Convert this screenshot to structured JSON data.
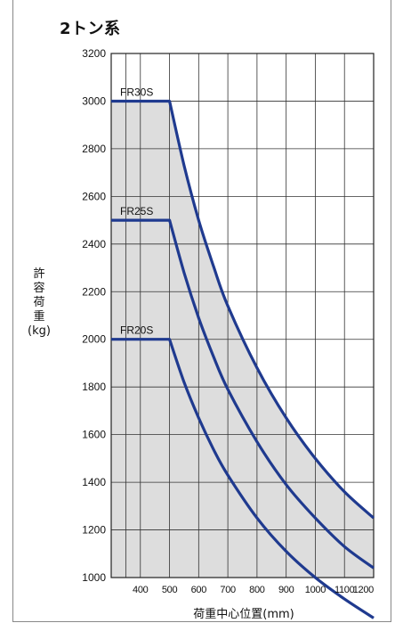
{
  "chart_data": {
    "type": "line",
    "title": "2トン系",
    "ylabel_chars": [
      "許",
      "容",
      "荷",
      "重"
    ],
    "ylabel_unit": "(kg)",
    "xlabel": "荷重中心位置(mm)",
    "xlim": [
      300,
      1200
    ],
    "ylim": [
      1000,
      3200
    ],
    "x_ticks": [
      400,
      500,
      600,
      700,
      800,
      900,
      1000,
      1100,
      1200
    ],
    "y_ticks": [
      1000,
      1200,
      1400,
      1600,
      1800,
      2000,
      2200,
      2400,
      2600,
      2800,
      3000,
      3200
    ],
    "grid": true,
    "shaded_area_color": "#dddddd",
    "line_color": "#1f3a8f",
    "series": [
      {
        "name": "FR30S",
        "x": [
          300,
          500,
          550,
          600,
          650,
          700,
          800,
          900,
          1000,
          1100,
          1200
        ],
        "y": [
          3000,
          3000,
          2730,
          2500,
          2310,
          2140,
          1880,
          1670,
          1500,
          1360,
          1250
        ]
      },
      {
        "name": "FR25S",
        "x": [
          300,
          500,
          550,
          600,
          650,
          700,
          800,
          900,
          1000,
          1100,
          1200
        ],
        "y": [
          2500,
          2500,
          2280,
          2090,
          1930,
          1790,
          1570,
          1390,
          1250,
          1130,
          1040
        ]
      },
      {
        "name": "FR20S",
        "x": [
          300,
          500,
          550,
          600,
          650,
          700,
          800,
          900,
          1000,
          1100,
          1200
        ],
        "y": [
          2000,
          2000,
          1820,
          1670,
          1540,
          1430,
          1250,
          1110,
          1000,
          910,
          830
        ]
      }
    ]
  }
}
